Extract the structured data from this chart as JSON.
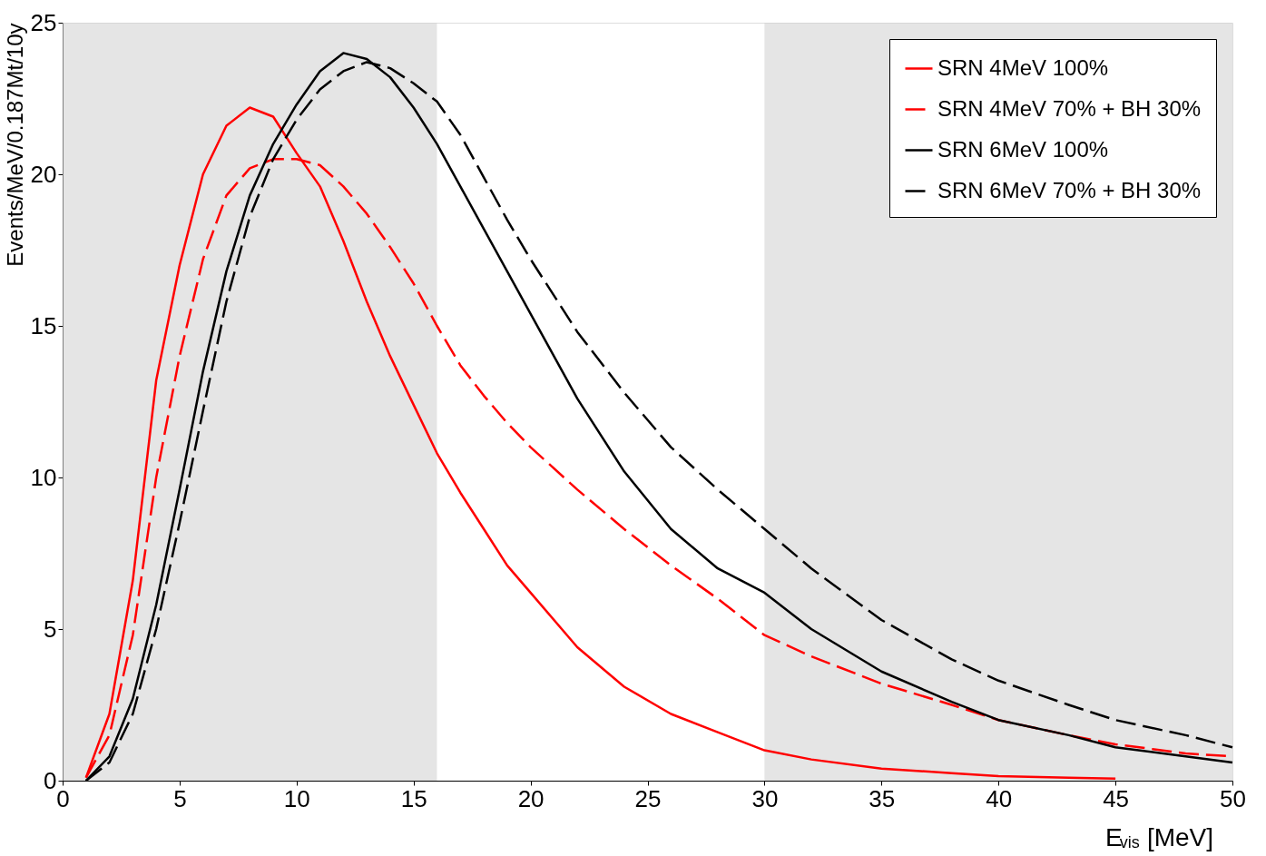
{
  "chart_data": {
    "type": "line",
    "xlabel": "E$_{vis}$ [MeV]",
    "ylabel": "Events/MeV/0.187Mt/10y",
    "x": [
      1,
      2,
      3,
      4,
      5,
      6,
      7,
      8,
      9,
      10,
      11,
      12,
      13,
      14,
      15,
      16,
      17,
      18,
      19,
      20,
      22,
      24,
      26,
      28,
      30,
      32,
      35,
      38,
      40,
      43,
      45,
      48,
      50
    ],
    "series": [
      {
        "name": "SRN 4MeV 100%",
        "color": "#ff0000",
        "line_style": "solid",
        "values": [
          0.1,
          2.2,
          6.6,
          13.2,
          17.0,
          20.0,
          21.6,
          22.2,
          21.9,
          20.7,
          19.6,
          17.8,
          15.8,
          14.0,
          12.4,
          10.8,
          9.5,
          8.3,
          7.1,
          6.2,
          4.4,
          3.1,
          2.2,
          1.6,
          1.0,
          0.7,
          0.4,
          0.25,
          0.15,
          0.1,
          0.07,
          null,
          null
        ]
      },
      {
        "name": "SRN 4MeV 70% + BH 30%",
        "color": "#ff0000",
        "line_style": "dashed",
        "values": [
          0.1,
          1.5,
          4.8,
          10.0,
          14.0,
          17.2,
          19.3,
          20.2,
          20.5,
          20.5,
          20.3,
          19.6,
          18.7,
          17.6,
          16.4,
          15.0,
          13.7,
          12.7,
          11.8,
          11.0,
          9.6,
          8.3,
          7.1,
          6.0,
          4.8,
          4.1,
          3.2,
          2.5,
          2.0,
          1.5,
          1.2,
          0.9,
          0.8
        ]
      },
      {
        "name": "SRN 6MeV 100%",
        "color": "#000000",
        "line_style": "solid",
        "values": [
          0.0,
          0.8,
          2.7,
          5.8,
          9.6,
          13.5,
          16.8,
          19.3,
          21.0,
          22.3,
          23.4,
          24.0,
          23.8,
          23.2,
          22.2,
          21.0,
          19.6,
          18.2,
          16.8,
          15.4,
          12.6,
          10.2,
          8.3,
          7.0,
          6.2,
          5.0,
          3.6,
          2.6,
          2.0,
          1.5,
          1.1,
          0.8,
          0.6
        ]
      },
      {
        "name": "SRN 6MeV 70% + BH 30%",
        "color": "#000000",
        "line_style": "dashed",
        "values": [
          0.0,
          0.6,
          2.2,
          5.0,
          8.5,
          12.2,
          15.8,
          18.6,
          20.5,
          21.8,
          22.8,
          23.4,
          23.7,
          23.5,
          23.0,
          22.4,
          21.3,
          19.9,
          18.5,
          17.2,
          14.8,
          12.8,
          11.0,
          9.6,
          8.3,
          7.0,
          5.3,
          4.0,
          3.3,
          2.5,
          2.0,
          1.5,
          1.1
        ]
      }
    ],
    "xlim": [
      0,
      50
    ],
    "xticks": [
      0,
      5,
      10,
      15,
      20,
      25,
      30,
      35,
      40,
      45,
      50
    ],
    "ylim": [
      0,
      25
    ],
    "yticks": [
      0,
      5,
      10,
      15,
      20,
      25
    ],
    "bands": [
      {
        "axis": "x",
        "from": 0,
        "to": 16,
        "color": "#d4d4d4"
      },
      {
        "axis": "x",
        "from": 30,
        "to": 50,
        "color": "#d4d4d4"
      }
    ],
    "legend": "top right",
    "grid": false
  }
}
